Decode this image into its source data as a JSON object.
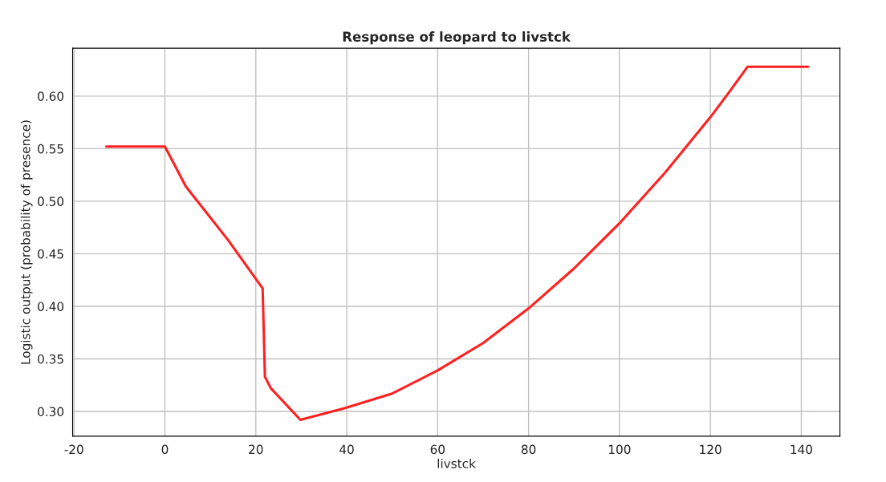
{
  "chart_data": {
    "type": "line",
    "title": "Response of leopard to livstck",
    "xlabel": "livstck",
    "ylabel": "Logistic output (probability of presence)",
    "x": [
      -12.9,
      0,
      4.6,
      13.9,
      21.5,
      22.0,
      23.3,
      29.8,
      39.5,
      50,
      60,
      70,
      80,
      90,
      100,
      110,
      120,
      124,
      128.2,
      141.5
    ],
    "series": [
      {
        "color": "#ff2020",
        "values": [
          0.552,
          0.552,
          0.514,
          0.463,
          0.417,
          0.333,
          0.322,
          0.292,
          0.303,
          0.317,
          0.339,
          0.365,
          0.398,
          0.436,
          0.479,
          0.527,
          0.58,
          0.603,
          0.628,
          0.628
        ]
      }
    ],
    "xlim": [
      -20.3,
      148.5
    ],
    "ylim": [
      0.2764,
      0.6456
    ],
    "xticks": [
      -20,
      0,
      20,
      40,
      60,
      80,
      100,
      120,
      140
    ],
    "yticks": [
      {
        "value": 0.3,
        "label": "0.30"
      },
      {
        "value": 0.35,
        "label": "0.35"
      },
      {
        "value": 0.4,
        "label": "0.40"
      },
      {
        "value": 0.45,
        "label": "0.45"
      },
      {
        "value": 0.5,
        "label": "0.50"
      },
      {
        "value": 0.55,
        "label": "0.55"
      },
      {
        "value": 0.6,
        "label": "0.60"
      }
    ],
    "grid": true,
    "marker": "none",
    "line_style": "solid"
  }
}
